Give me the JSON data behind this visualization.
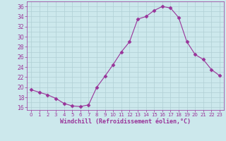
{
  "x": [
    0,
    1,
    2,
    3,
    4,
    5,
    6,
    7,
    8,
    9,
    10,
    11,
    12,
    13,
    14,
    15,
    16,
    17,
    18,
    19,
    20,
    21,
    22,
    23
  ],
  "y": [
    19.5,
    19.0,
    18.5,
    17.8,
    16.8,
    16.3,
    16.2,
    16.5,
    20.0,
    22.2,
    24.5,
    27.0,
    29.0,
    33.5,
    34.0,
    35.2,
    36.0,
    35.7,
    33.8,
    29.0,
    26.5,
    25.5,
    23.5,
    22.3
  ],
  "line_color": "#993399",
  "marker": "D",
  "marker_size": 2.5,
  "bg_color": "#cce8ec",
  "grid_color": "#b0cfd4",
  "xlabel": "Windchill (Refroidissement éolien,°C)",
  "xlabel_color": "#993399",
  "tick_color": "#993399",
  "ylim": [
    15.5,
    37
  ],
  "xlim": [
    -0.5,
    23.5
  ],
  "yticks": [
    16,
    18,
    20,
    22,
    24,
    26,
    28,
    30,
    32,
    34,
    36
  ],
  "xticks": [
    0,
    1,
    2,
    3,
    4,
    5,
    6,
    7,
    8,
    9,
    10,
    11,
    12,
    13,
    14,
    15,
    16,
    17,
    18,
    19,
    20,
    21,
    22,
    23
  ],
  "ytick_fontsize": 5.5,
  "xtick_fontsize": 5.0,
  "xlabel_fontsize": 6.0
}
